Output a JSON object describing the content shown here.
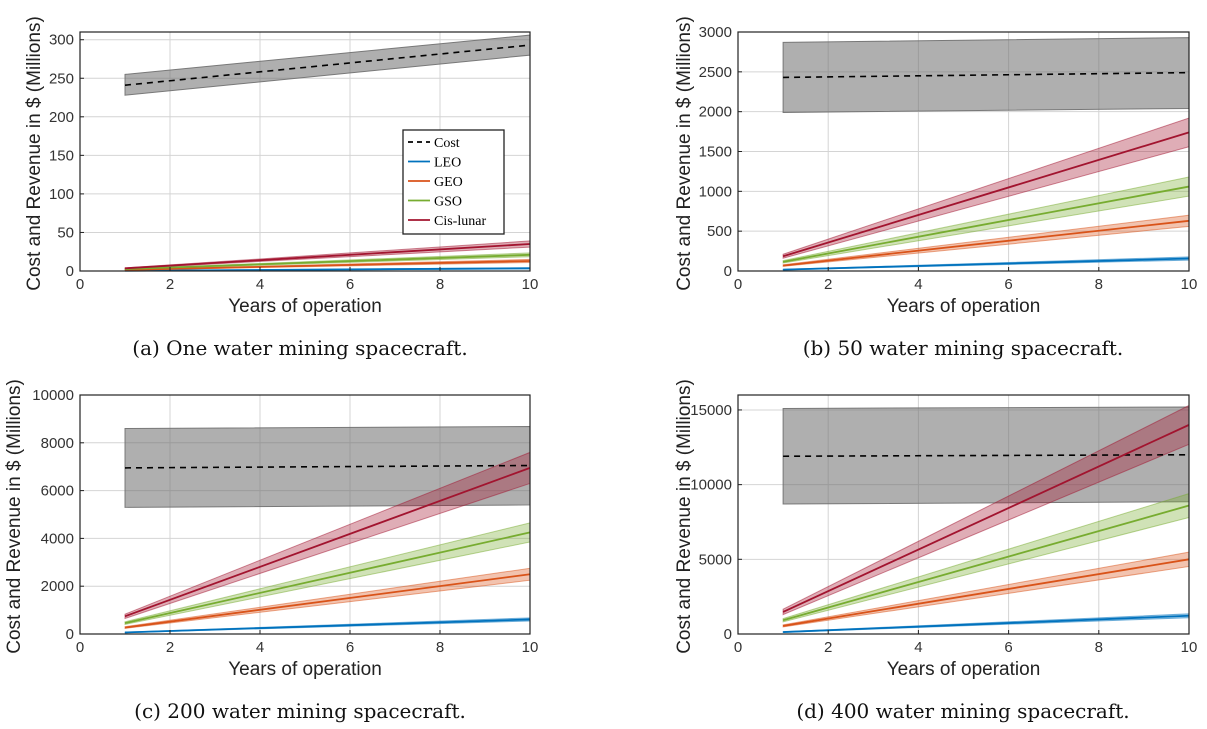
{
  "chart_data": [
    {
      "type": "line",
      "caption": "(a) One water mining spacecraft.",
      "xlabel": "Years of operation",
      "ylabel": "Cost and Revenue in $ (Millions)",
      "xlim": [
        0,
        10
      ],
      "ylim": [
        0,
        310
      ],
      "xticks": [
        0,
        2,
        4,
        6,
        8,
        10
      ],
      "yticks": [
        0,
        50,
        100,
        150,
        200,
        250,
        300
      ],
      "grid": true,
      "legend": {
        "placement": "center-right",
        "entries": [
          "Cost",
          "LEO",
          "GEO",
          "GSO",
          "Cis-lunar"
        ]
      },
      "series": [
        {
          "name": "Cost",
          "x": [
            1,
            10
          ],
          "y": [
            241,
            293
          ],
          "lower": [
            228,
            280
          ],
          "upper": [
            255,
            306
          ]
        },
        {
          "name": "LEO",
          "x": [
            1,
            10
          ],
          "y": [
            0.3,
            3.5
          ],
          "lower": [
            0.2,
            2.8
          ],
          "upper": [
            0.4,
            4.2
          ]
        },
        {
          "name": "GEO",
          "x": [
            1,
            10
          ],
          "y": [
            1.5,
            13
          ],
          "lower": [
            1.2,
            11
          ],
          "upper": [
            1.8,
            15
          ]
        },
        {
          "name": "GSO",
          "x": [
            1,
            10
          ],
          "y": [
            2.5,
            21
          ],
          "lower": [
            2.1,
            18.5
          ],
          "upper": [
            2.9,
            23.5
          ]
        },
        {
          "name": "Cis-lunar",
          "x": [
            1,
            10
          ],
          "y": [
            3.5,
            35
          ],
          "lower": [
            3,
            31
          ],
          "upper": [
            4,
            39
          ]
        }
      ]
    },
    {
      "type": "line",
      "caption": "(b) 50 water mining spacecraft.",
      "xlabel": "Years of operation",
      "ylabel": "Cost and Revenue in $ (Millions)",
      "xlim": [
        0,
        10
      ],
      "ylim": [
        0,
        3000
      ],
      "xticks": [
        0,
        2,
        4,
        6,
        8,
        10
      ],
      "yticks": [
        0,
        500,
        1000,
        1500,
        2000,
        2500,
        3000
      ],
      "grid": true,
      "series": [
        {
          "name": "Cost",
          "x": [
            1,
            10
          ],
          "y": [
            2430,
            2490
          ],
          "lower": [
            1990,
            2040
          ],
          "upper": [
            2870,
            2930
          ]
        },
        {
          "name": "LEO",
          "x": [
            1,
            10
          ],
          "y": [
            17,
            157
          ],
          "lower": [
            14,
            137
          ],
          "upper": [
            20,
            177
          ]
        },
        {
          "name": "GEO",
          "x": [
            1,
            10
          ],
          "y": [
            68,
            630
          ],
          "lower": [
            58,
            560
          ],
          "upper": [
            78,
            700
          ]
        },
        {
          "name": "GSO",
          "x": [
            1,
            10
          ],
          "y": [
            115,
            1060
          ],
          "lower": [
            100,
            940
          ],
          "upper": [
            130,
            1180
          ]
        },
        {
          "name": "Cis-lunar",
          "x": [
            1,
            10
          ],
          "y": [
            185,
            1740
          ],
          "lower": [
            160,
            1560
          ],
          "upper": [
            210,
            1920
          ]
        }
      ]
    },
    {
      "type": "line",
      "caption": "(c) 200 water mining spacecraft.",
      "xlabel": "Years of operation",
      "ylabel": "Cost and Revenue in $ (Millions)",
      "xlim": [
        0,
        10
      ],
      "ylim": [
        0,
        10000
      ],
      "xticks": [
        0,
        2,
        4,
        6,
        8,
        10
      ],
      "yticks": [
        0,
        2000,
        4000,
        6000,
        8000,
        10000
      ],
      "grid": true,
      "series": [
        {
          "name": "Cost",
          "x": [
            1,
            10
          ],
          "y": [
            6950,
            7050
          ],
          "lower": [
            5300,
            5400
          ],
          "upper": [
            8600,
            8680
          ]
        },
        {
          "name": "LEO",
          "x": [
            1,
            10
          ],
          "y": [
            65,
            610
          ],
          "lower": [
            55,
            545
          ],
          "upper": [
            75,
            675
          ]
        },
        {
          "name": "GEO",
          "x": [
            1,
            10
          ],
          "y": [
            270,
            2500
          ],
          "lower": [
            235,
            2250
          ],
          "upper": [
            305,
            2750
          ]
        },
        {
          "name": "GSO",
          "x": [
            1,
            10
          ],
          "y": [
            455,
            4250
          ],
          "lower": [
            400,
            3850
          ],
          "upper": [
            510,
            4650
          ]
        },
        {
          "name": "Cis-lunar",
          "x": [
            1,
            10
          ],
          "y": [
            740,
            6950
          ],
          "lower": [
            650,
            6300
          ],
          "upper": [
            830,
            7600
          ]
        }
      ]
    },
    {
      "type": "line",
      "caption": "(d) 400 water mining spacecraft.",
      "xlabel": "Years of operation",
      "ylabel": "Cost and Revenue in $ (Millions)",
      "xlim": [
        0,
        10
      ],
      "ylim": [
        0,
        16000
      ],
      "xticks": [
        0,
        2,
        4,
        6,
        8,
        10
      ],
      "yticks": [
        0,
        5000,
        10000,
        15000
      ],
      "grid": true,
      "series": [
        {
          "name": "Cost",
          "x": [
            1,
            10
          ],
          "y": [
            11900,
            12000
          ],
          "lower": [
            8700,
            8850
          ],
          "upper": [
            15100,
            15200
          ]
        },
        {
          "name": "LEO",
          "x": [
            1,
            10
          ],
          "y": [
            130,
            1220
          ],
          "lower": [
            110,
            1090
          ],
          "upper": [
            150,
            1350
          ]
        },
        {
          "name": "GEO",
          "x": [
            1,
            10
          ],
          "y": [
            540,
            5000
          ],
          "lower": [
            470,
            4520
          ],
          "upper": [
            610,
            5480
          ]
        },
        {
          "name": "GSO",
          "x": [
            1,
            10
          ],
          "y": [
            920,
            8600
          ],
          "lower": [
            810,
            7800
          ],
          "upper": [
            1030,
            9400
          ]
        },
        {
          "name": "Cis-lunar",
          "x": [
            1,
            10
          ],
          "y": [
            1480,
            14000
          ],
          "lower": [
            1300,
            12700
          ],
          "upper": [
            1660,
            15300
          ]
        }
      ]
    }
  ],
  "colors": {
    "Cost": "#000000",
    "Cost_band": "#6e6e6e",
    "LEO": "#0072BD",
    "GEO": "#D95319",
    "GSO": "#77AC30",
    "Cis-lunar": "#A2142F"
  }
}
